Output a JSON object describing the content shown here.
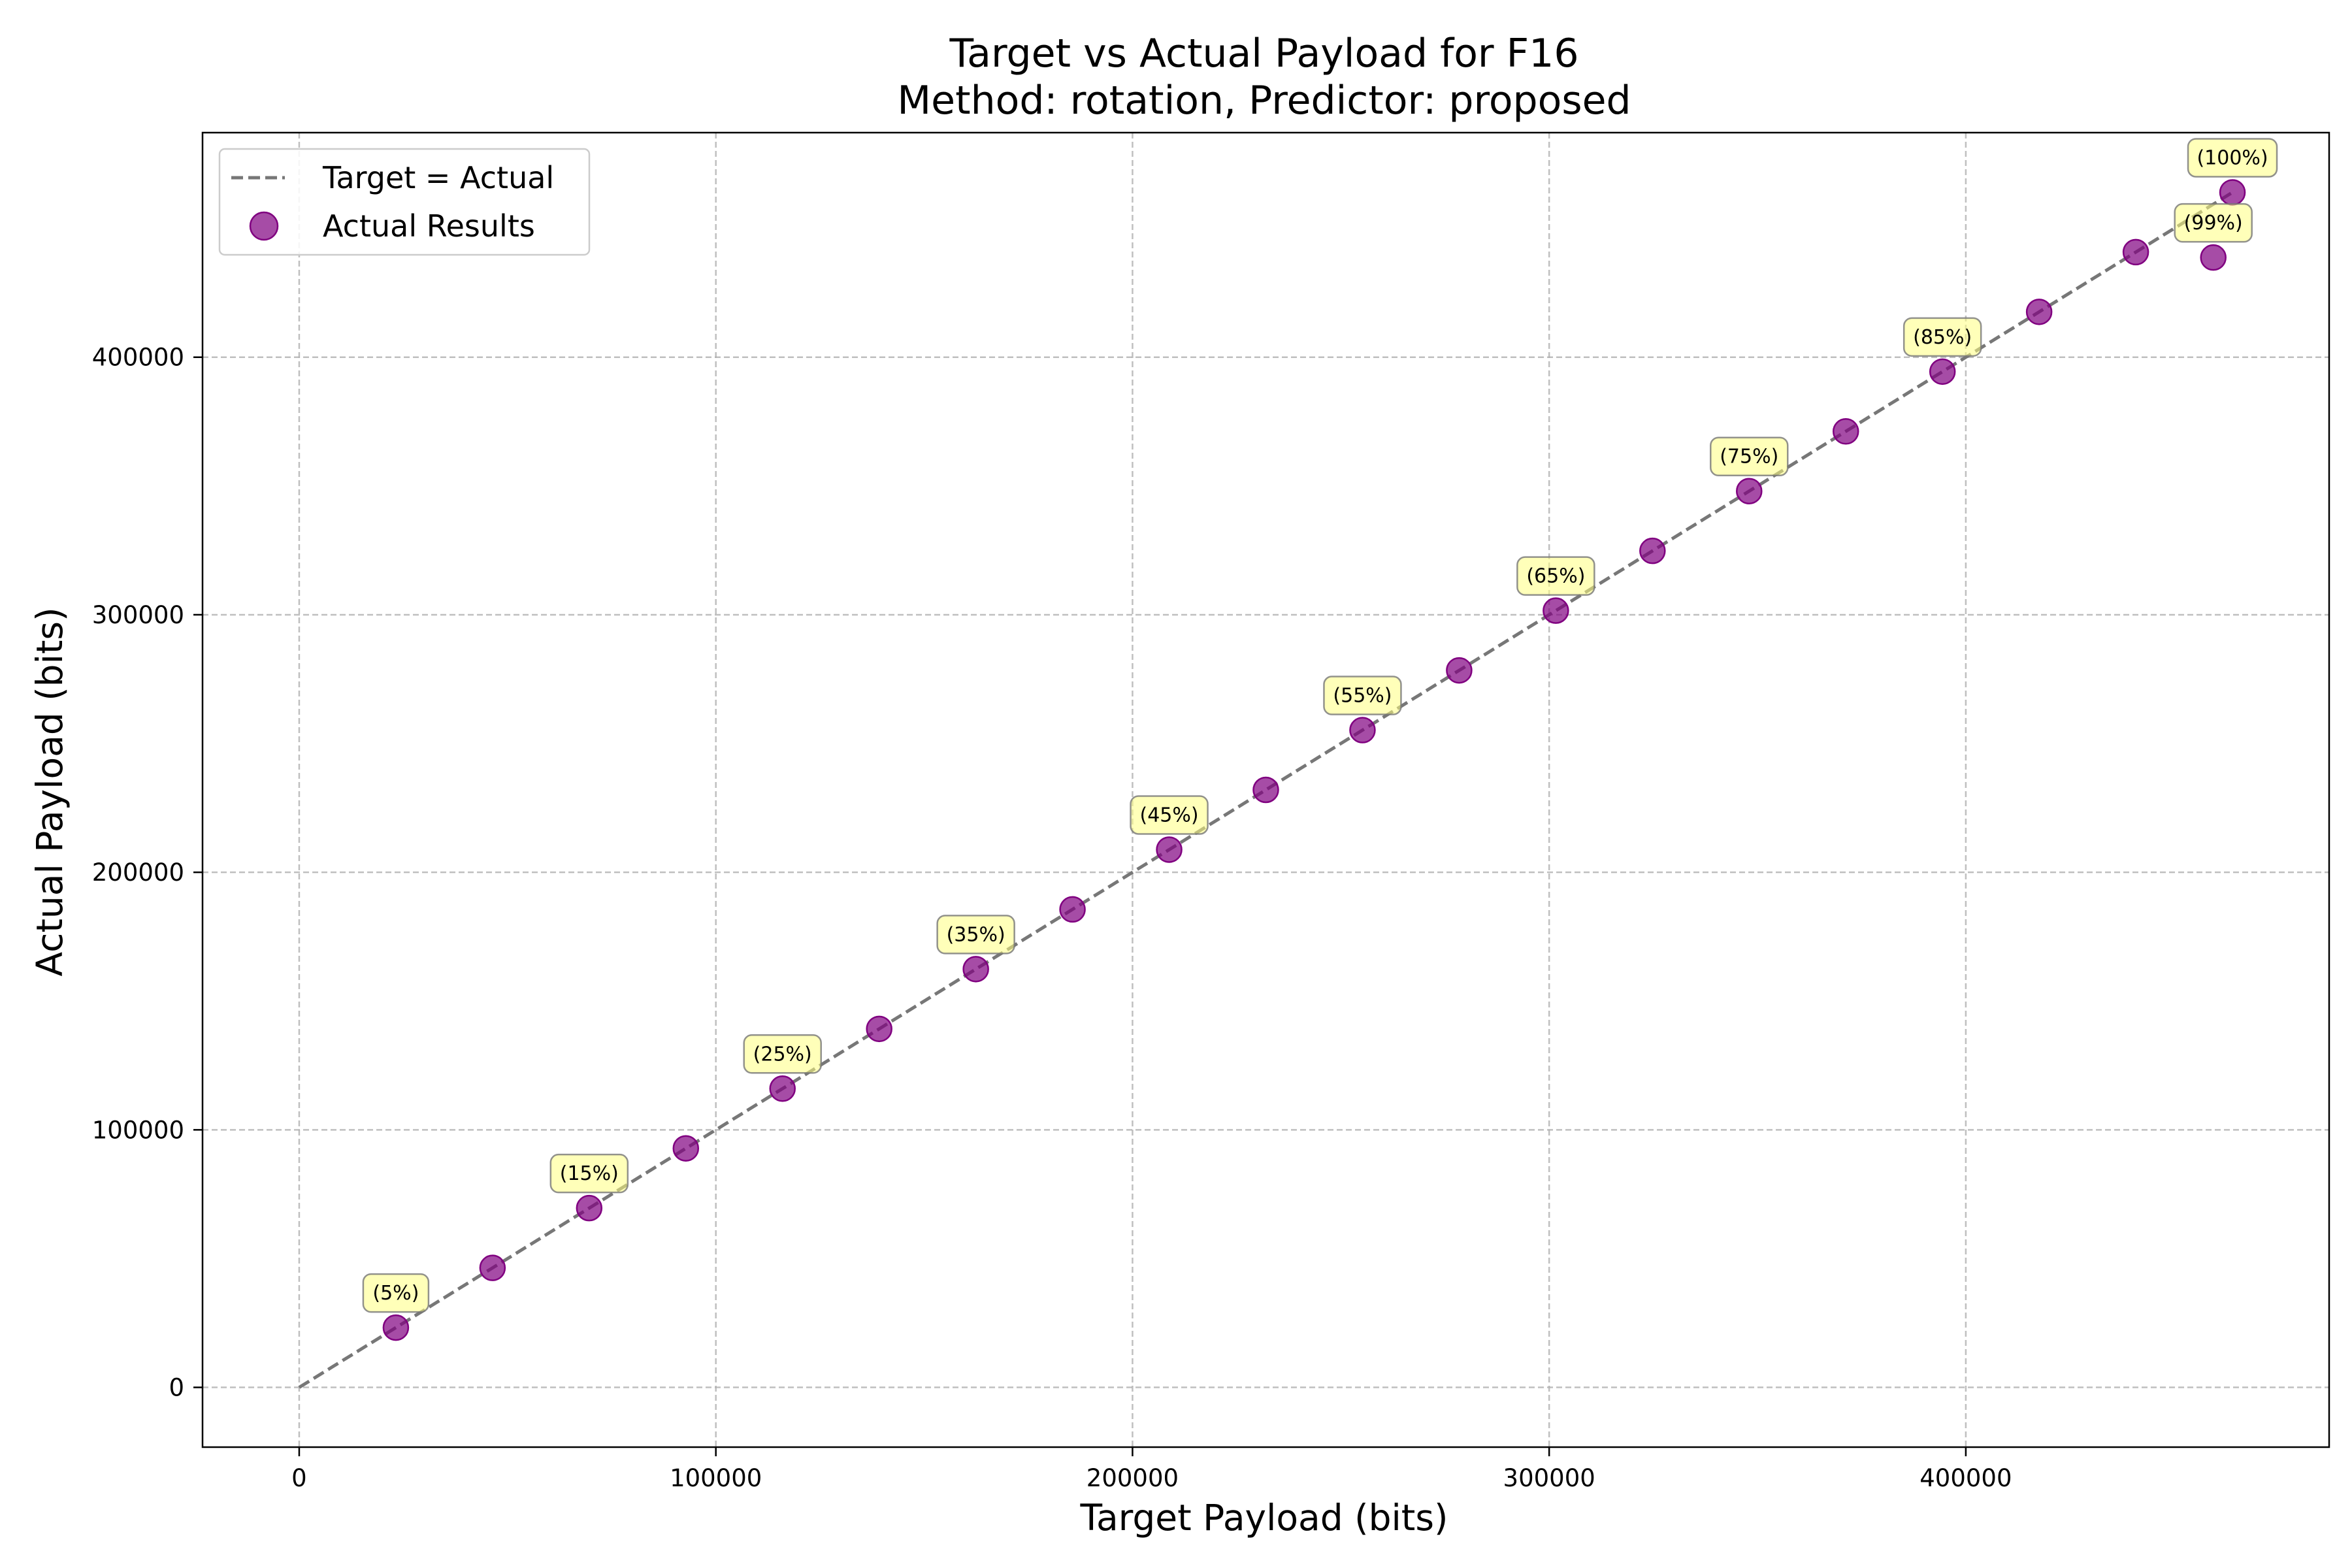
{
  "chart_data": {
    "type": "scatter",
    "title": "Target vs Actual Payload for F16",
    "subtitle": "Method: rotation, Predictor: proposed",
    "xlabel": "Target Payload (bits)",
    "ylabel": "Actual Payload (bits)",
    "xlim": [
      -23200,
      487200
    ],
    "ylim": [
      -23200,
      487200
    ],
    "xticks": [
      0,
      100000,
      200000,
      300000,
      400000
    ],
    "yticks": [
      0,
      100000,
      200000,
      300000,
      400000
    ],
    "grid": true,
    "legend_position": "upper-left",
    "reference_line": {
      "name": "Target = Actual",
      "x": [
        0,
        464000
      ],
      "y": [
        0,
        464000
      ],
      "color": "#777777",
      "style": "dashed"
    },
    "series": [
      {
        "name": "Actual Results",
        "color": "#800080",
        "points": [
          {
            "x": 23200,
            "y": 23200,
            "label": "(5%)"
          },
          {
            "x": 46400,
            "y": 46400
          },
          {
            "x": 69600,
            "y": 69600,
            "label": "(15%)"
          },
          {
            "x": 92800,
            "y": 92800
          },
          {
            "x": 116000,
            "y": 116000,
            "label": "(25%)"
          },
          {
            "x": 139200,
            "y": 139200
          },
          {
            "x": 162400,
            "y": 162400,
            "label": "(35%)"
          },
          {
            "x": 185600,
            "y": 185600
          },
          {
            "x": 208800,
            "y": 208800,
            "label": "(45%)"
          },
          {
            "x": 232000,
            "y": 232000
          },
          {
            "x": 255200,
            "y": 255200,
            "label": "(55%)"
          },
          {
            "x": 278400,
            "y": 278400
          },
          {
            "x": 301600,
            "y": 301600,
            "label": "(65%)"
          },
          {
            "x": 324800,
            "y": 324800
          },
          {
            "x": 348000,
            "y": 348000,
            "label": "(75%)"
          },
          {
            "x": 371200,
            "y": 371200
          },
          {
            "x": 394400,
            "y": 394400,
            "label": "(85%)"
          },
          {
            "x": 417600,
            "y": 417600
          },
          {
            "x": 440800,
            "y": 440800
          },
          {
            "x": 459400,
            "y": 438700,
            "label": "(99%)"
          },
          {
            "x": 464000,
            "y": 464000,
            "label": "(100%)"
          }
        ]
      }
    ]
  }
}
